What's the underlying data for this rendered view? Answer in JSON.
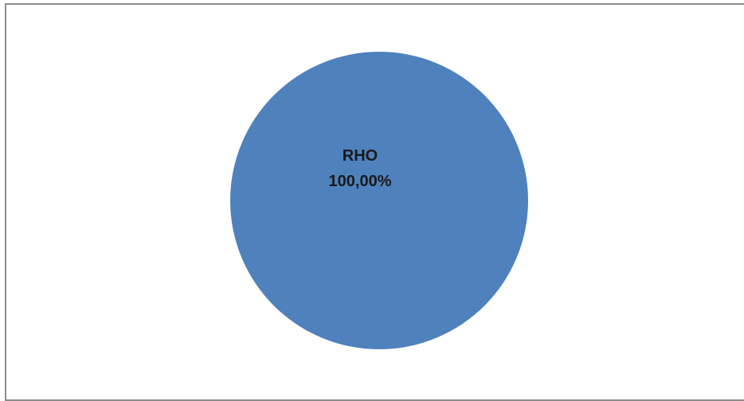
{
  "chart_data": {
    "type": "pie",
    "title": "",
    "categories": [
      "RHO"
    ],
    "values": [
      100.0
    ],
    "data_labels": [
      {
        "category": "RHO",
        "percent": "100,00%"
      }
    ],
    "colors": [
      "#4f81bd"
    ],
    "legend": "none"
  }
}
